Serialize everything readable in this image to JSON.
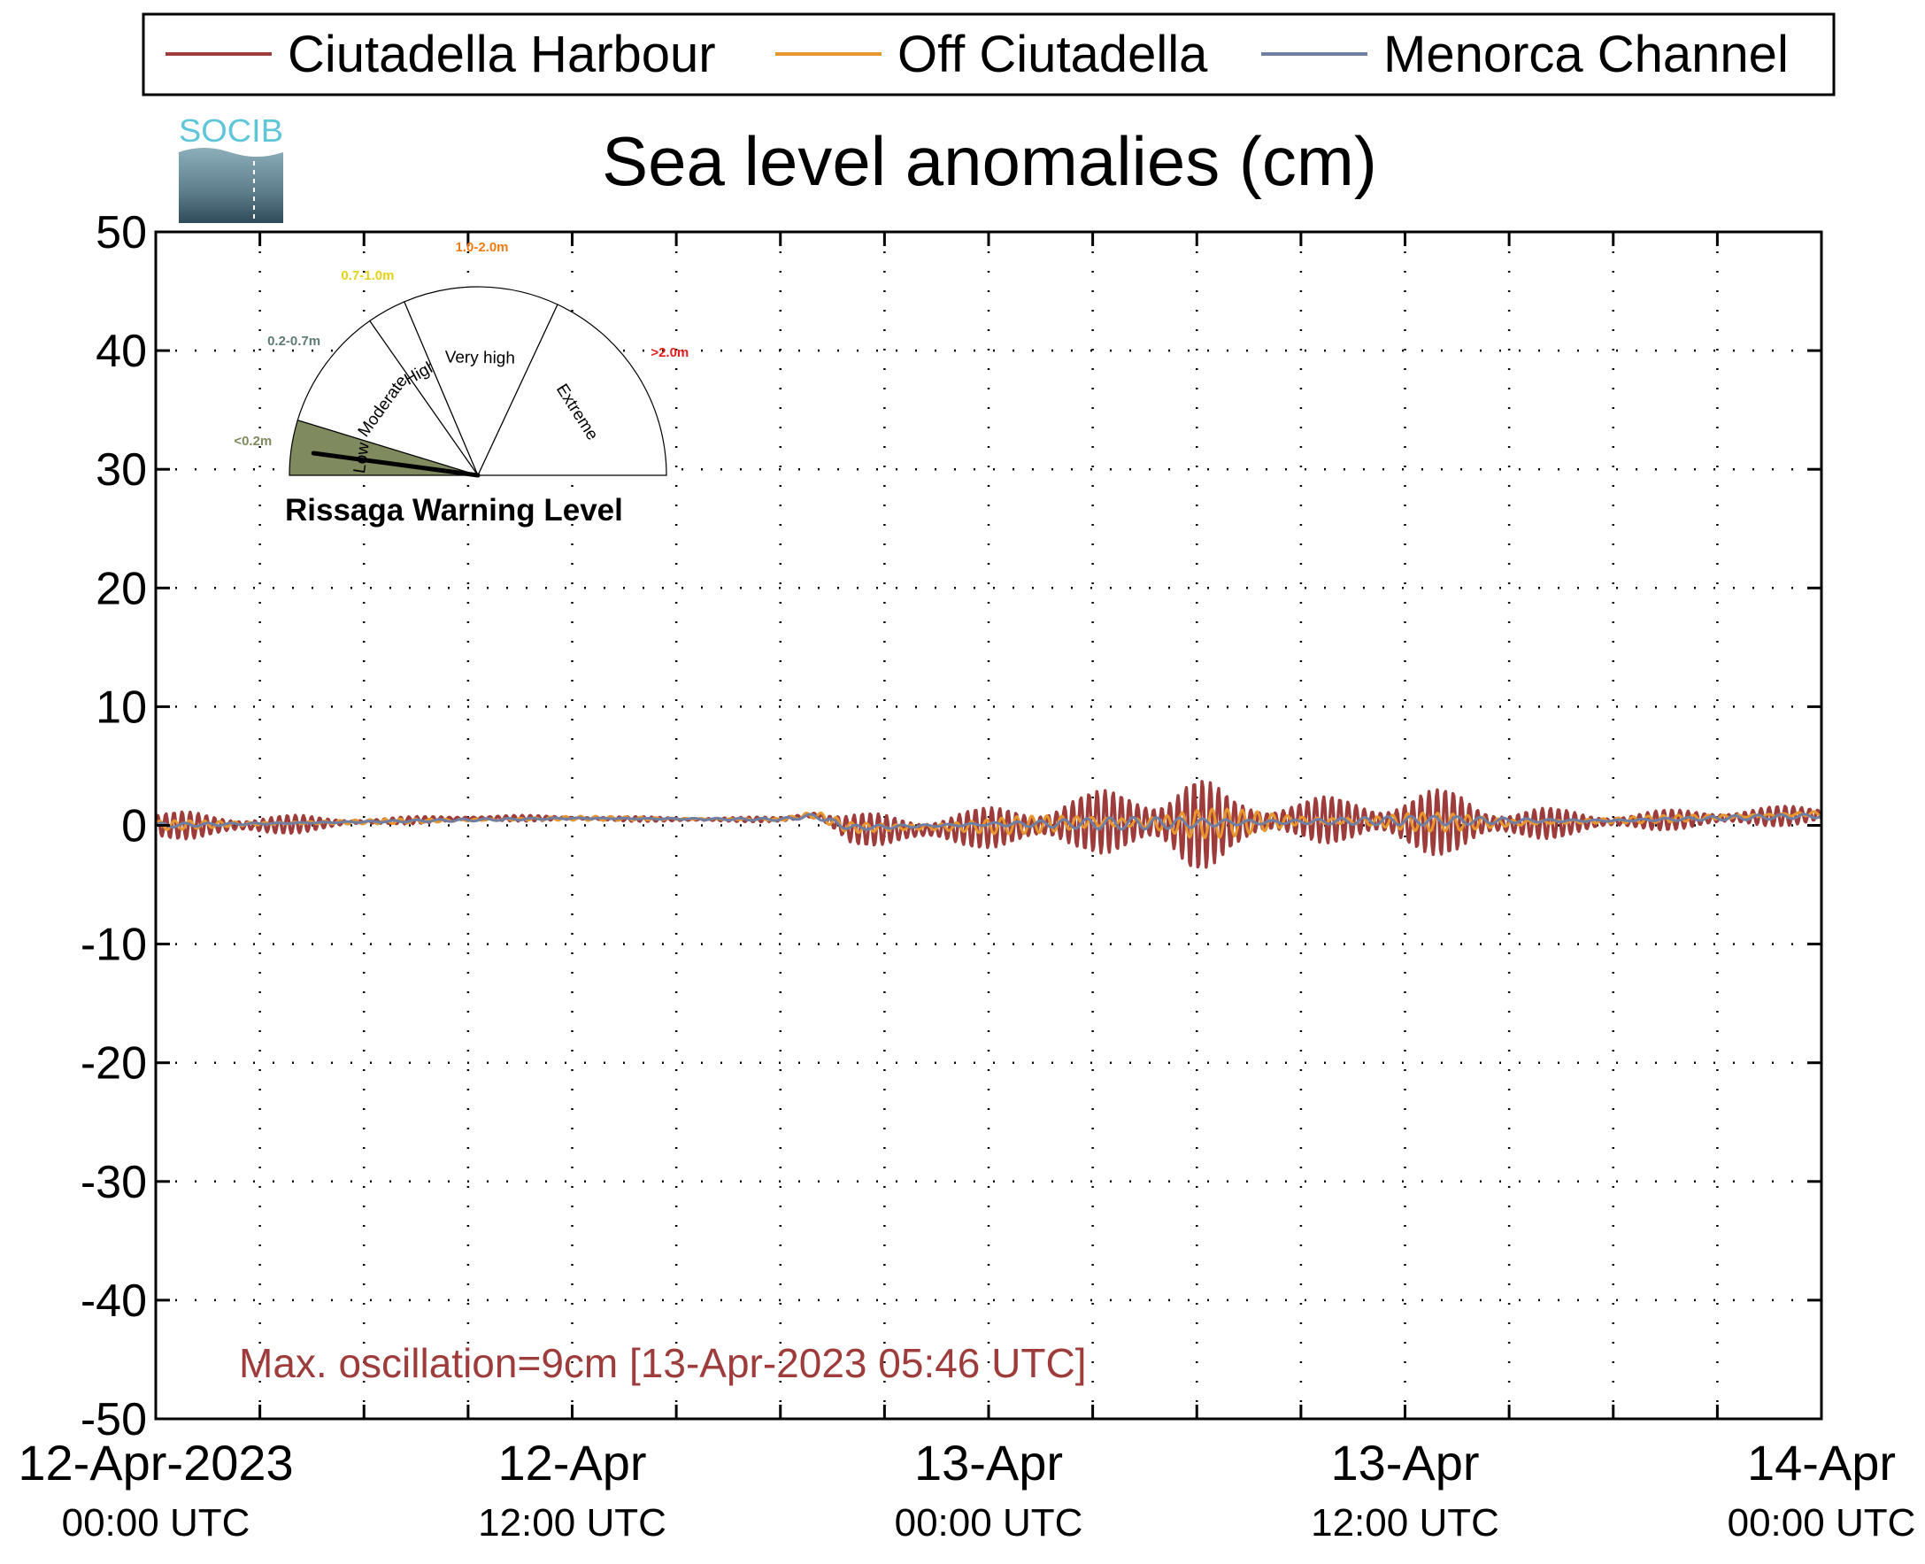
{
  "chart_data": {
    "type": "line",
    "title": "Sea level anomalies (cm)",
    "ylim": [
      -50,
      50
    ],
    "yticks": [
      50,
      40,
      30,
      20,
      10,
      0,
      -10,
      -20,
      -30,
      -40,
      -50
    ],
    "x_range": [
      "2023-04-12T00:00Z",
      "2023-04-14T00:00Z"
    ],
    "x_major_ticks": [
      {
        "x": "2023-04-12T00:00Z",
        "date_label": "12-Apr-2023",
        "time_label": "00:00 UTC"
      },
      {
        "x": "2023-04-12T12:00Z",
        "date_label": "12-Apr",
        "time_label": "12:00 UTC"
      },
      {
        "x": "2023-04-13T00:00Z",
        "date_label": "13-Apr",
        "time_label": "00:00 UTC"
      },
      {
        "x": "2023-04-13T12:00Z",
        "date_label": "13-Apr",
        "time_label": "12:00 UTC"
      },
      {
        "x": "2023-04-14T00:00Z",
        "date_label": "14-Apr",
        "time_label": "00:00 UTC"
      }
    ],
    "grid": true,
    "legend_position": "top",
    "series": [
      {
        "name": "Ciutadella Harbour",
        "color": "#9E3B3B",
        "envelope": {
          "x": [
            "2023-04-12T00:00Z",
            "2023-04-12T03:00Z",
            "2023-04-12T06:00Z",
            "2023-04-12T09:00Z",
            "2023-04-12T12:00Z",
            "2023-04-12T15:00Z",
            "2023-04-12T18:00Z",
            "2023-04-12T19:00Z",
            "2023-04-12T20:00Z",
            "2023-04-12T22:00Z",
            "2023-04-13T00:00Z",
            "2023-04-13T01:30Z",
            "2023-04-13T03:00Z",
            "2023-04-13T04:30Z",
            "2023-04-13T05:46Z",
            "2023-04-13T07:00Z",
            "2023-04-13T09:00Z",
            "2023-04-13T11:00Z",
            "2023-04-13T12:00Z",
            "2023-04-13T13:30Z",
            "2023-04-13T15:00Z",
            "2023-04-13T18:00Z",
            "2023-04-13T21:00Z",
            "2023-04-14T00:00Z"
          ],
          "mean": [
            0,
            0,
            0.3,
            0.6,
            0.6,
            0.5,
            0.5,
            0.9,
            -0.3,
            -0.4,
            -0.2,
            0,
            0.3,
            0.3,
            0,
            0.2,
            0.5,
            0.4,
            0.2,
            0.3,
            0.1,
            0.3,
            0.6,
            0.9
          ],
          "amplitude": [
            1.2,
            1.0,
            0.3,
            0.3,
            0.2,
            0.2,
            0.2,
            0.5,
            1.3,
            1.5,
            1.7,
            2.4,
            2.5,
            3.5,
            4.5,
            2.5,
            1.8,
            2.2,
            2.7,
            2.8,
            1.6,
            0.8,
            0.9,
            0.8
          ]
        }
      },
      {
        "name": "Off Ciutadella",
        "color": "#E8962E",
        "envelope": {
          "x": [
            "2023-04-12T00:00Z",
            "2023-04-12T06:00Z",
            "2023-04-12T12:00Z",
            "2023-04-12T18:00Z",
            "2023-04-12T19:00Z",
            "2023-04-12T20:00Z",
            "2023-04-13T00:00Z",
            "2023-04-13T03:00Z",
            "2023-04-13T05:46Z",
            "2023-04-13T09:00Z",
            "2023-04-13T12:00Z",
            "2023-04-13T15:00Z",
            "2023-04-13T18:00Z",
            "2023-04-14T00:00Z"
          ],
          "mean": [
            0,
            0.3,
            0.6,
            0.5,
            0.9,
            -0.2,
            -0.1,
            0.3,
            0.1,
            0.4,
            0.3,
            0.2,
            0.4,
            1.0
          ],
          "amplitude": [
            0.4,
            0.2,
            0.2,
            0.1,
            0.3,
            0.6,
            0.7,
            0.8,
            1.5,
            0.6,
            0.9,
            0.5,
            0.3,
            0.3
          ]
        }
      },
      {
        "name": "Menorca Channel",
        "color": "#6F7FA4",
        "envelope": {
          "x": [
            "2023-04-12T00:00Z",
            "2023-04-12T06:00Z",
            "2023-04-12T12:00Z",
            "2023-04-12T18:00Z",
            "2023-04-12T19:00Z",
            "2023-04-12T20:00Z",
            "2023-04-13T00:00Z",
            "2023-04-13T05:46Z",
            "2023-04-13T12:00Z",
            "2023-04-13T18:00Z",
            "2023-04-14T00:00Z"
          ],
          "mean": [
            0,
            0.3,
            0.6,
            0.5,
            0.8,
            -0.2,
            0.1,
            0.2,
            0.4,
            0.4,
            0.8
          ],
          "amplitude": [
            0.2,
            0.1,
            0.1,
            0.1,
            0.2,
            0.3,
            0.3,
            0.6,
            0.4,
            0.2,
            0.2
          ]
        }
      }
    ],
    "annotation": {
      "text": "Max. oscillation=9cm [13-Apr-2023 05:46 UTC]",
      "color": "#9E3B3B"
    }
  },
  "gauge": {
    "title": "Rissaga Warning Level",
    "needle_value_m": 0.09,
    "sectors": [
      {
        "label": "Low",
        "range": "<0.2m",
        "color": "#7F8B5E",
        "active": true
      },
      {
        "label": "Moderate",
        "range": "0.2-0.7m",
        "color": "#5D7B75",
        "active": false
      },
      {
        "label": "High",
        "range": "0.7-1.0m",
        "color": "#E6D21A",
        "active": false
      },
      {
        "label": "Very high",
        "range": "1.0-2.0m",
        "color": "#F07B12",
        "active": false
      },
      {
        "label": "Extreme",
        "range": ">2.0m",
        "color": "#E41E1E",
        "active": false
      }
    ]
  },
  "logo": {
    "text": "SOCIB",
    "color": "#5EC6D8"
  }
}
